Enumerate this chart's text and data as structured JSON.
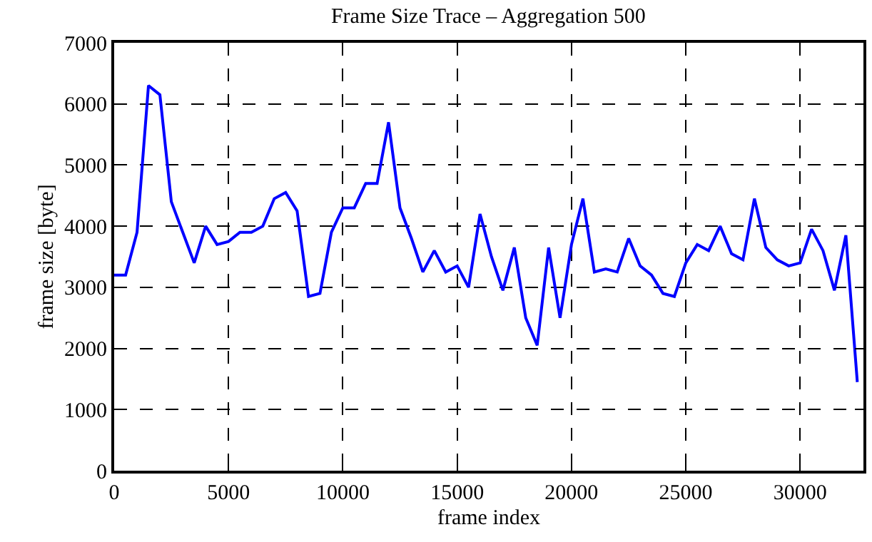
{
  "chart_data": {
    "type": "line",
    "title": "Frame Size Trace – Aggregation 500",
    "xlabel": "frame index",
    "ylabel": "frame size [byte]",
    "x": [
      0,
      500,
      1000,
      1500,
      2000,
      2500,
      3000,
      3500,
      4000,
      4500,
      5000,
      5500,
      6000,
      6500,
      7000,
      7500,
      8000,
      8500,
      9000,
      9500,
      10000,
      10500,
      11000,
      11500,
      12000,
      12500,
      13000,
      13500,
      14000,
      14500,
      15000,
      15500,
      16000,
      16500,
      17000,
      17500,
      18000,
      18500,
      19000,
      19500,
      20000,
      20500,
      21000,
      21500,
      22000,
      22500,
      23000,
      23500,
      24000,
      24500,
      25000,
      25500,
      26000,
      26500,
      27000,
      27500,
      28000,
      28500,
      29000,
      29500,
      30000,
      30500,
      31000,
      31500,
      32000,
      32500
    ],
    "series": [
      {
        "color": "#0000ff",
        "values": [
          3200,
          3200,
          3900,
          6300,
          6150,
          4400,
          3900,
          3400,
          4000,
          3700,
          3750,
          3900,
          3900,
          4000,
          4450,
          4550,
          4250,
          2850,
          2900,
          3900,
          4300,
          4300,
          4700,
          4700,
          5700,
          4300,
          3800,
          3250,
          3600,
          3250,
          3350,
          3000,
          4200,
          3500,
          2950,
          3650,
          2500,
          2050,
          3650,
          2500,
          3700,
          4450,
          3250,
          3300,
          3250,
          3800,
          3350,
          3200,
          2900,
          2850,
          3400,
          3700,
          3600,
          4000,
          3550,
          3450,
          4450,
          3650,
          3450,
          3350,
          3400,
          3950,
          3600,
          2950,
          3850,
          1450
        ]
      }
    ],
    "xlim": [
      0,
      32768
    ],
    "xticks": [
      0,
      5000,
      10000,
      15000,
      20000,
      25000,
      30000
    ],
    "ylim": [
      0,
      7000
    ],
    "yticks": [
      0,
      1000,
      2000,
      3000,
      4000,
      5000,
      6000,
      7000
    ],
    "grid": true,
    "marker": "none",
    "line_style": "solid"
  }
}
